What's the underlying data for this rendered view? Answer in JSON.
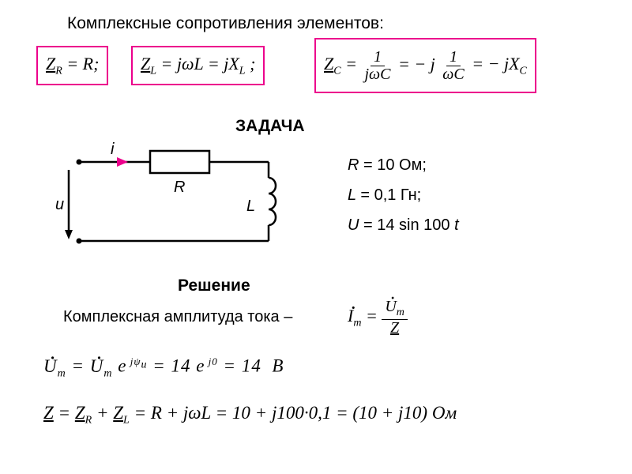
{
  "title": "Комплексные сопротивления элементов:",
  "formulas": {
    "zr": {
      "lhs": "Z",
      "lhs_sub": "R",
      "rhs": "R",
      "suffix": ";"
    },
    "zl": {
      "text_html": "<span class='under'>Z</span><span class='sub'>L</span> = jωL = jX<span class='sub'>L</span> ;"
    },
    "zc": {
      "prefix": "<span class='under'>Z</span><span class='sub'>C</span> = ",
      "frac1_num": "1",
      "frac1_den": "jωC",
      "mid": " = − j ",
      "frac2_num": "1",
      "frac2_den": "ωC",
      "suffix": " = − jX<span class='sub'>C</span>"
    }
  },
  "heading_task": "ЗАДАЧА",
  "circuit": {
    "i_label": "i",
    "u_label": "u",
    "R_label": "R",
    "L_label": "L",
    "stroke": "#000000",
    "arrow_fill": "#ec008c"
  },
  "given": {
    "line1_html": "R <span class='rm'>= 10 Ом;</span>",
    "line2_html": "L <span class='rm'>= 0,1 Гн;</span>",
    "line3_html": "U <span class='rm'>= 14 sin 100</span> t"
  },
  "heading_solution": "Решение",
  "solution": {
    "line1_text": "Комплексная амплитуда тока –",
    "im_frac": {
      "num_html": "<span class='dot-over'>U</span><span class='sub'>m</span>",
      "den_html": "<span class='under'>Z</span>"
    },
    "im_lhs_html": "<span class='dot-over'>I</span><span class='sub'>m</span> = ",
    "um_html": "<span class='dot-over'>U</span><span class='sub'>m</span> = <span class='dot-over'>U</span><span class='sub'>m</span> e<sup style='font-size:13px'> jψ<span class='sub'>u</span></sup> = 14 e<sup style='font-size:13px'> j0</sup> = 14 &nbsp;В",
    "z_html": "<span class='under'>Z</span> = <span class='under'>Z</span><span class='sub'>R</span> + <span class='under'>Z</span><span class='sub'>L</span> = R + jωL = 10 + j100·0,1 = (10 + j10) Ом"
  },
  "boxes": {
    "box_border": "#ec008c",
    "bg": "#ffffff"
  }
}
